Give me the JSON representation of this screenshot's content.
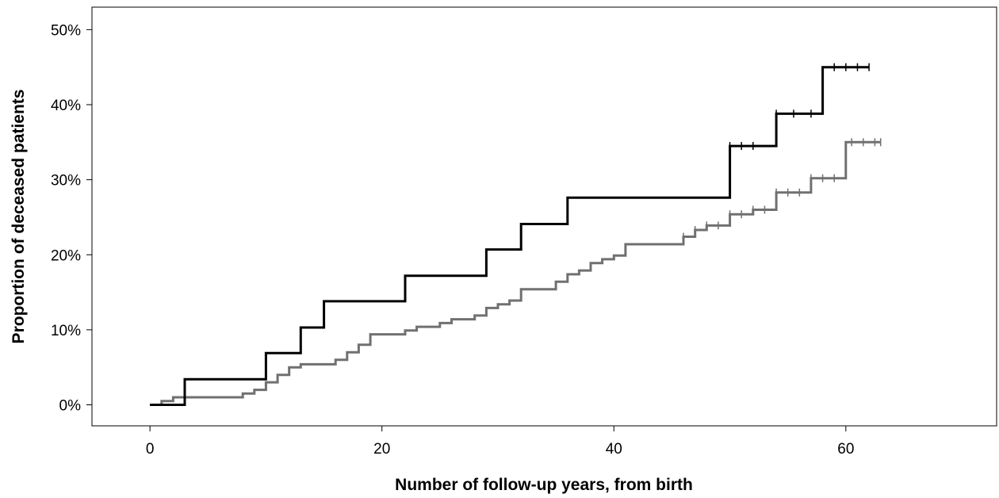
{
  "chart_data": {
    "type": "line",
    "step": true,
    "title": "",
    "xlabel": "Number of follow-up years, from birth",
    "ylabel": "Proportion of deceased patients",
    "xlim": [
      -5,
      73
    ],
    "ylim": [
      -2.8,
      53
    ],
    "x_ticks": [
      0,
      20,
      40,
      60
    ],
    "x_tick_labels": [
      "0",
      "20",
      "40",
      "60"
    ],
    "y_ticks": [
      0,
      10,
      20,
      30,
      40,
      50
    ],
    "y_tick_labels": [
      "0%",
      "10%",
      "20%",
      "30%",
      "40%",
      "50%"
    ],
    "grid": false,
    "legend": "none",
    "series": [
      {
        "color": "#000000",
        "points": [
          [
            0,
            0
          ],
          [
            3,
            0
          ],
          [
            3,
            3.4
          ],
          [
            10,
            3.4
          ],
          [
            10,
            6.9
          ],
          [
            13,
            6.9
          ],
          [
            13,
            10.3
          ],
          [
            15,
            10.3
          ],
          [
            15,
            13.8
          ],
          [
            22,
            13.8
          ],
          [
            22,
            17.2
          ],
          [
            29,
            17.2
          ],
          [
            29,
            20.7
          ],
          [
            32,
            20.7
          ],
          [
            32,
            24.1
          ],
          [
            36,
            24.1
          ],
          [
            36,
            27.6
          ],
          [
            50,
            27.6
          ],
          [
            50,
            34.5
          ],
          [
            54,
            34.5
          ],
          [
            54,
            38.8
          ],
          [
            58,
            38.8
          ],
          [
            58,
            45
          ],
          [
            62,
            45
          ]
        ],
        "censored": [
          [
            50,
            34.5
          ],
          [
            51,
            34.5
          ],
          [
            52,
            34.5
          ],
          [
            54,
            38.8
          ],
          [
            55.5,
            38.8
          ],
          [
            57,
            38.8
          ],
          [
            59,
            45
          ],
          [
            60,
            45
          ],
          [
            61,
            45
          ],
          [
            62,
            45
          ]
        ]
      },
      {
        "color": "#707070",
        "points": [
          [
            0,
            0
          ],
          [
            1,
            0
          ],
          [
            1,
            0.5
          ],
          [
            2,
            0.5
          ],
          [
            2,
            1
          ],
          [
            8,
            1
          ],
          [
            8,
            1.5
          ],
          [
            9,
            1.5
          ],
          [
            9,
            2
          ],
          [
            10,
            2
          ],
          [
            10,
            3
          ],
          [
            11,
            3
          ],
          [
            11,
            4
          ],
          [
            12,
            4
          ],
          [
            12,
            5
          ],
          [
            13,
            5
          ],
          [
            13,
            5.4
          ],
          [
            16,
            5.4
          ],
          [
            16,
            6
          ],
          [
            17,
            6
          ],
          [
            17,
            7
          ],
          [
            18,
            7
          ],
          [
            18,
            8
          ],
          [
            19,
            8
          ],
          [
            19,
            9.4
          ],
          [
            22,
            9.4
          ],
          [
            22,
            9.9
          ],
          [
            23,
            9.9
          ],
          [
            23,
            10.4
          ],
          [
            25,
            10.4
          ],
          [
            25,
            10.9
          ],
          [
            26,
            10.9
          ],
          [
            26,
            11.4
          ],
          [
            28,
            11.4
          ],
          [
            28,
            11.9
          ],
          [
            29,
            11.9
          ],
          [
            29,
            12.9
          ],
          [
            30,
            12.9
          ],
          [
            30,
            13.4
          ],
          [
            31,
            13.4
          ],
          [
            31,
            13.9
          ],
          [
            32,
            13.9
          ],
          [
            32,
            15.4
          ],
          [
            35,
            15.4
          ],
          [
            35,
            16.4
          ],
          [
            36,
            16.4
          ],
          [
            36,
            17.4
          ],
          [
            37,
            17.4
          ],
          [
            37,
            17.9
          ],
          [
            38,
            17.9
          ],
          [
            38,
            18.9
          ],
          [
            39,
            18.9
          ],
          [
            39,
            19.4
          ],
          [
            40,
            19.4
          ],
          [
            40,
            19.9
          ],
          [
            41,
            19.9
          ],
          [
            41,
            21.4
          ],
          [
            46,
            21.4
          ],
          [
            46,
            22.4
          ],
          [
            47,
            22.4
          ],
          [
            47,
            23.3
          ],
          [
            48,
            23.3
          ],
          [
            48,
            23.9
          ],
          [
            50,
            23.9
          ],
          [
            50,
            25.4
          ],
          [
            52,
            25.4
          ],
          [
            52,
            26
          ],
          [
            54,
            26
          ],
          [
            54,
            28.3
          ],
          [
            57,
            28.3
          ],
          [
            57,
            30.2
          ],
          [
            60,
            30.2
          ],
          [
            60,
            35
          ],
          [
            63,
            35
          ]
        ],
        "censored": [
          [
            46,
            22.4
          ],
          [
            47,
            23.3
          ],
          [
            48,
            23.9
          ],
          [
            49,
            23.9
          ],
          [
            50,
            25.4
          ],
          [
            51,
            25.4
          ],
          [
            52,
            26
          ],
          [
            53,
            26
          ],
          [
            54,
            28.3
          ],
          [
            55,
            28.3
          ],
          [
            56,
            28.3
          ],
          [
            57,
            30.2
          ],
          [
            58,
            30.2
          ],
          [
            59,
            30.2
          ],
          [
            60.5,
            35
          ],
          [
            61.5,
            35
          ],
          [
            62.5,
            35
          ],
          [
            63,
            35
          ]
        ]
      }
    ]
  }
}
